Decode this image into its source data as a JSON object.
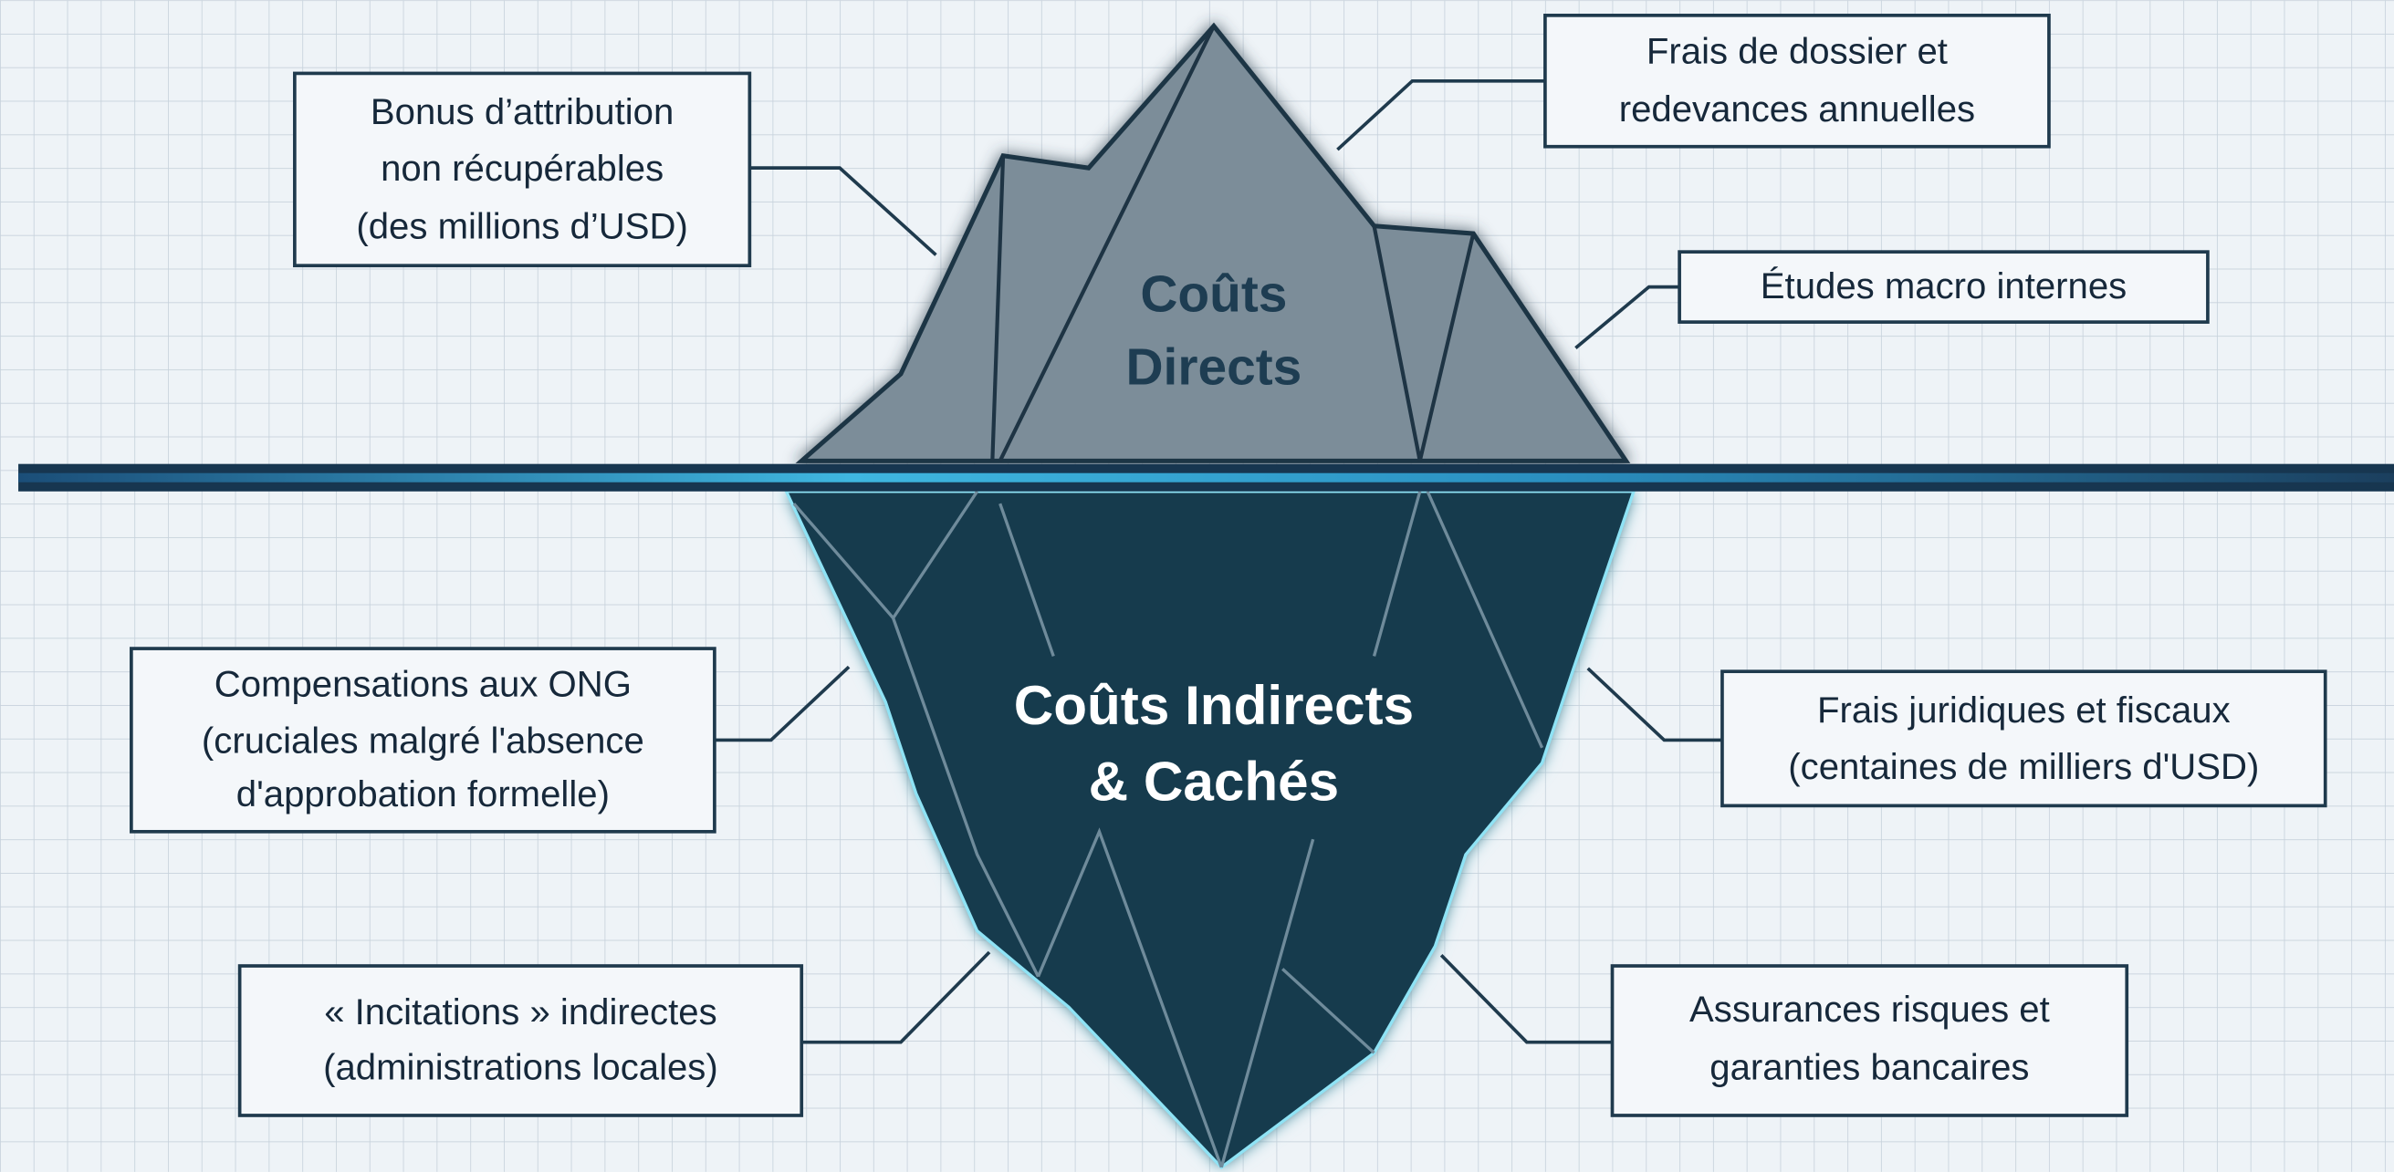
{
  "iceberg": {
    "above": {
      "title": [
        "Coûts",
        "Directs"
      ]
    },
    "below": {
      "title": [
        "Coûts Indirects",
        "& Cachés"
      ]
    }
  },
  "callouts": [
    {
      "lines": [
        "Bonus d’attribution",
        "non récupérables",
        "(des millions d’USD)"
      ]
    },
    {
      "lines": [
        "Frais de dossier et",
        "redevances annuelles"
      ]
    },
    {
      "lines": [
        "Études macro internes"
      ]
    },
    {
      "lines": [
        "Compensations aux ONG",
        "(cruciales malgré l'absence",
        "d'approbation formelle)"
      ]
    },
    {
      "lines": [
        "Frais juridiques et fiscaux",
        "(centaines de milliers d'USD)"
      ]
    },
    {
      "lines": [
        "« Incitations » indirectes",
        "(administrations locales)"
      ]
    },
    {
      "lines": [
        "Assurances risques et",
        "garanties bancaires"
      ]
    }
  ]
}
